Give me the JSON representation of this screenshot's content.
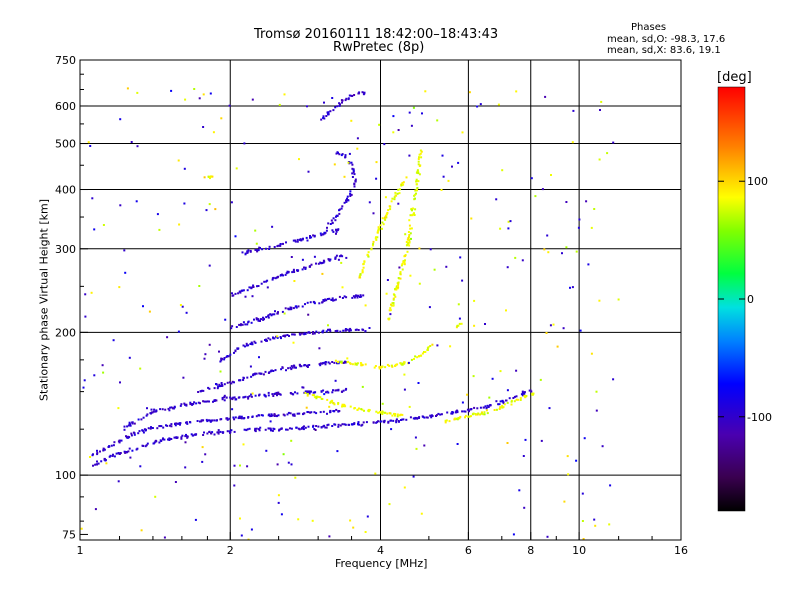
{
  "chart_data": {
    "type": "scatter",
    "title": "Tromsø 20160111 18:42:00–18:43:43",
    "subtitle": "RwPretec (8p)",
    "xlabel": "Frequency [MHz]",
    "ylabel": "Stationary phase Virtual Height [km]",
    "x_scale": "log2",
    "y_scale": "log",
    "xlim": [
      1,
      16
    ],
    "ylim": [
      73,
      750
    ],
    "xticks": [
      "1",
      "2",
      "4",
      "6",
      "8",
      "10",
      "16"
    ],
    "yticks": [
      "75",
      "100",
      "200",
      "300",
      "400",
      "500",
      "600",
      "750"
    ],
    "grid_x": [
      2,
      4,
      6,
      8,
      10
    ],
    "grid_y": [
      100,
      200,
      300,
      400,
      500,
      600
    ],
    "grid": true,
    "colorbar": {
      "label": "[deg]",
      "range": [
        -180,
        180
      ],
      "ticks": [
        "100",
        "0",
        "-100"
      ]
    },
    "legend_text": {
      "title": "Phases",
      "line_o": "mean, sd,O:  -98.3, 17.6",
      "line_x": "mean, sd,X:  83.6, 19.1"
    },
    "series": [
      {
        "mode": "O",
        "phase_deg": -98.3,
        "phase_sd": 17.6,
        "traces": [
          {
            "points": [
              [
                1.05,
                105
              ],
              [
                1.15,
                110
              ],
              [
                1.3,
                115
              ],
              [
                1.5,
                120
              ],
              [
                1.8,
                123
              ],
              [
                2.1,
                125
              ],
              [
                2.6,
                126
              ],
              [
                3.0,
                127
              ],
              [
                3.6,
                129
              ],
              [
                4.2,
                131
              ],
              [
                4.8,
                133
              ],
              [
                5.3,
                135
              ],
              [
                5.8,
                137
              ],
              [
                6.5,
                140
              ],
              [
                7.3,
                146
              ],
              [
                8.0,
                152
              ]
            ]
          },
          {
            "points": [
              [
                1.05,
                110
              ],
              [
                1.15,
                116
              ],
              [
                1.3,
                124
              ],
              [
                1.5,
                128
              ],
              [
                1.8,
                131
              ],
              [
                2.1,
                133
              ],
              [
                2.6,
                135
              ],
              [
                3.0,
                136
              ],
              [
                3.3,
                137
              ]
            ]
          },
          {
            "points": [
              [
                1.2,
                125
              ],
              [
                1.4,
                137
              ],
              [
                1.6,
                141
              ],
              [
                1.9,
                145
              ],
              [
                2.3,
                148
              ],
              [
                2.7,
                150
              ],
              [
                3.1,
                151
              ],
              [
                3.4,
                152
              ]
            ]
          },
          {
            "points": [
              [
                1.7,
                150
              ],
              [
                2.0,
                158
              ],
              [
                2.3,
                165
              ],
              [
                2.7,
                170
              ],
              [
                3.1,
                173
              ],
              [
                3.4,
                174
              ]
            ]
          },
          {
            "points": [
              [
                1.9,
                175
              ],
              [
                2.1,
                188
              ],
              [
                2.4,
                195
              ],
              [
                2.7,
                199
              ],
              [
                3.1,
                202
              ],
              [
                3.4,
                203
              ],
              [
                3.8,
                203
              ]
            ]
          },
          {
            "points": [
              [
                2.0,
                205
              ],
              [
                2.3,
                215
              ],
              [
                2.6,
                225
              ],
              [
                2.9,
                232
              ],
              [
                3.3,
                237
              ],
              [
                3.7,
                240
              ]
            ]
          },
          {
            "points": [
              [
                2.0,
                240
              ],
              [
                2.3,
                255
              ],
              [
                2.6,
                268
              ],
              [
                2.9,
                278
              ],
              [
                3.2,
                287
              ],
              [
                3.4,
                292
              ]
            ]
          },
          {
            "points": [
              [
                2.1,
                295
              ],
              [
                2.5,
                307
              ],
              [
                2.8,
                317
              ],
              [
                3.1,
                325
              ],
              [
                3.3,
                330
              ]
            ]
          },
          {
            "points": [
              [
                3.1,
                330
              ],
              [
                3.3,
                360
              ],
              [
                3.45,
                390
              ],
              [
                3.55,
                420
              ],
              [
                3.5,
                450
              ],
              [
                3.4,
                470
              ],
              [
                3.25,
                480
              ]
            ]
          },
          {
            "points": [
              [
                3.0,
                560
              ],
              [
                3.3,
                610
              ],
              [
                3.5,
                635
              ],
              [
                3.7,
                640
              ]
            ]
          }
        ]
      },
      {
        "mode": "X",
        "phase_deg": 83.6,
        "phase_sd": 19.1,
        "traces": [
          {
            "points": [
              [
                2.8,
                150
              ],
              [
                3.2,
                143
              ],
              [
                3.6,
                138
              ],
              [
                4.0,
                136
              ],
              [
                4.5,
                134
              ]
            ]
          },
          {
            "points": [
              [
                3.2,
                175
              ],
              [
                3.6,
                172
              ],
              [
                4.0,
                170
              ],
              [
                4.4,
                172
              ],
              [
                4.8,
                180
              ],
              [
                5.1,
                190
              ]
            ]
          },
          {
            "points": [
              [
                4.1,
                210
              ],
              [
                4.3,
                250
              ],
              [
                4.5,
                300
              ],
              [
                4.6,
                350
              ],
              [
                4.7,
                400
              ],
              [
                4.75,
                450
              ],
              [
                4.8,
                490
              ]
            ]
          },
          {
            "points": [
              [
                3.6,
                260
              ],
              [
                3.8,
                300
              ],
              [
                4.0,
                340
              ],
              [
                4.2,
                380
              ],
              [
                4.4,
                410
              ],
              [
                4.5,
                430
              ]
            ]
          },
          {
            "points": [
              [
                5.3,
                130
              ],
              [
                6.0,
                134
              ],
              [
                6.8,
                138
              ],
              [
                7.5,
                145
              ],
              [
                8.2,
                150
              ]
            ]
          },
          {
            "points": [
              [
                5.6,
                205
              ],
              [
                5.8,
                210
              ]
            ]
          },
          {
            "points": [
              [
                1.75,
                425
              ],
              [
                1.85,
                430
              ]
            ]
          }
        ]
      }
    ]
  }
}
